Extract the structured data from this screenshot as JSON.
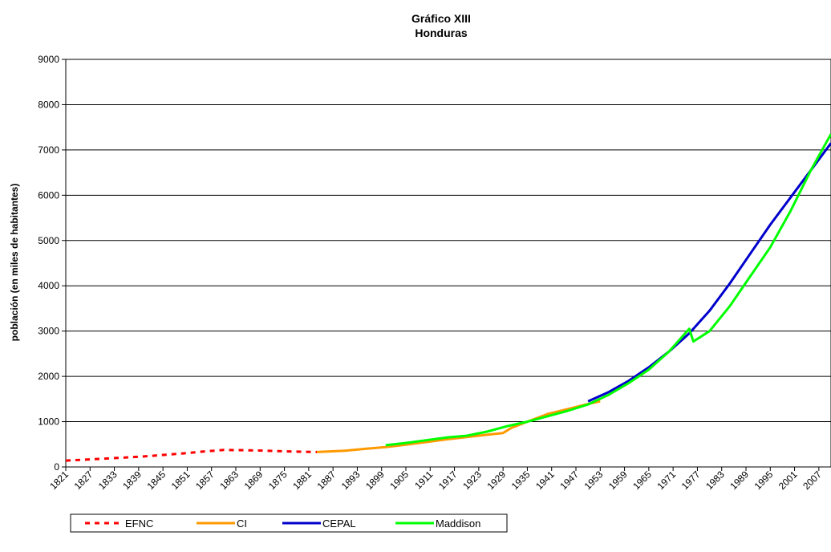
{
  "chart_data": {
    "type": "line",
    "title": "Gráfico XIII",
    "subtitle": "Honduras",
    "xlabel": "",
    "ylabel": "población (en miles de habitantes)",
    "ylim": [
      0,
      9000
    ],
    "yticks": [
      0,
      1000,
      2000,
      3000,
      4000,
      5000,
      6000,
      7000,
      8000,
      9000
    ],
    "xlim": [
      1821,
      2010
    ],
    "xticks": [
      1821,
      1827,
      1833,
      1839,
      1845,
      1851,
      1857,
      1863,
      1869,
      1875,
      1881,
      1887,
      1893,
      1899,
      1905,
      1911,
      1917,
      1923,
      1929,
      1935,
      1941,
      1947,
      1953,
      1959,
      1965,
      1971,
      1977,
      1983,
      1989,
      1995,
      2001,
      2007
    ],
    "grid": "horizontal",
    "legend_position": "bottom",
    "series": [
      {
        "name": "EFNC",
        "color": "#ff0000",
        "style": "dashed",
        "x": [
          1821,
          1830,
          1840,
          1850,
          1855,
          1860,
          1865,
          1870,
          1875,
          1880,
          1883
        ],
        "y": [
          140,
          180,
          230,
          300,
          340,
          375,
          370,
          360,
          345,
          335,
          330
        ]
      },
      {
        "name": "CI",
        "color": "#ff9900",
        "style": "solid",
        "x": [
          1883,
          1890,
          1895,
          1900,
          1905,
          1910,
          1915,
          1920,
          1925,
          1929,
          1931,
          1935,
          1940,
          1945,
          1950,
          1953
        ],
        "y": [
          330,
          360,
          400,
          440,
          490,
          550,
          610,
          660,
          710,
          750,
          860,
          1000,
          1170,
          1280,
          1390,
          1450
        ]
      },
      {
        "name": "CEPAL",
        "color": "#0000cc",
        "style": "solid",
        "x": [
          1950,
          1955,
          1960,
          1965,
          1970,
          1975,
          1980,
          1985,
          1990,
          1995,
          2000,
          2005,
          2010
        ],
        "y": [
          1450,
          1650,
          1900,
          2200,
          2550,
          2950,
          3450,
          4050,
          4700,
          5350,
          5950,
          6550,
          7150
        ]
      },
      {
        "name": "Maddison",
        "color": "#00ff00",
        "style": "solid",
        "x": [
          1900,
          1905,
          1910,
          1915,
          1920,
          1925,
          1930,
          1935,
          1940,
          1945,
          1950,
          1955,
          1960,
          1965,
          1970,
          1975,
          1976,
          1980,
          1985,
          1990,
          1995,
          2000,
          2005,
          2010
        ],
        "y": [
          480,
          530,
          590,
          650,
          690,
          780,
          900,
          1000,
          1120,
          1240,
          1380,
          1590,
          1850,
          2150,
          2550,
          3050,
          2770,
          3000,
          3550,
          4200,
          4850,
          5650,
          6550,
          7350
        ]
      }
    ]
  }
}
